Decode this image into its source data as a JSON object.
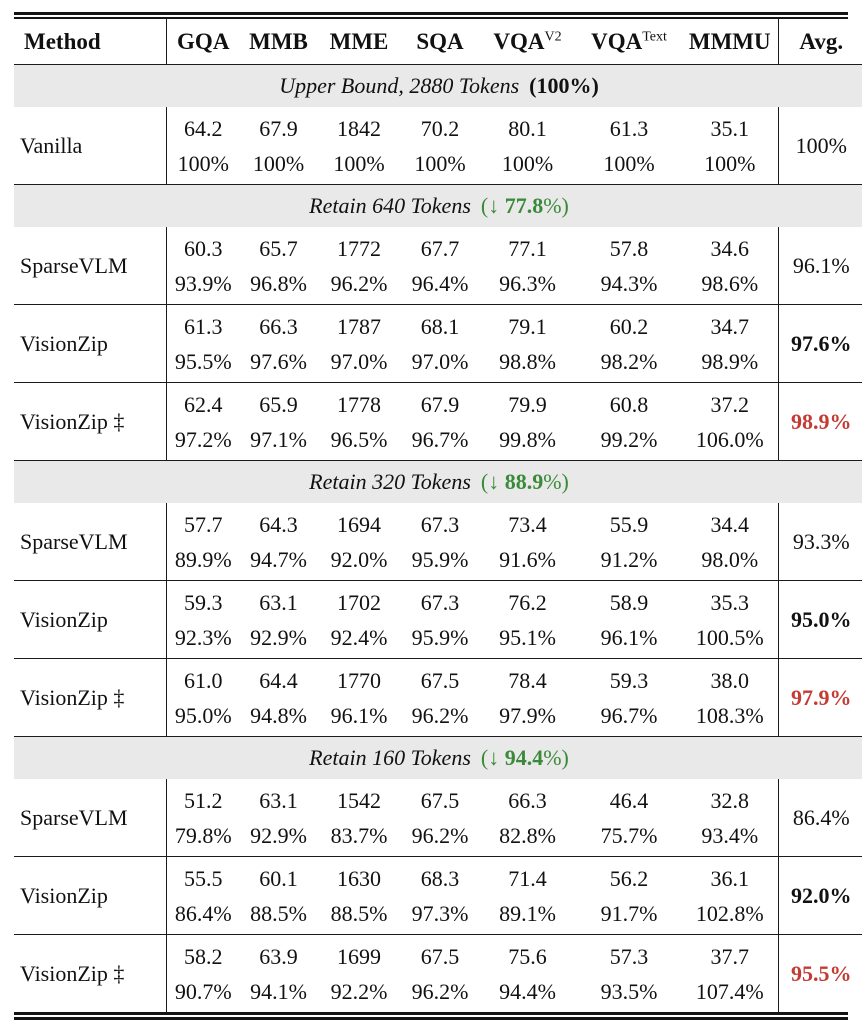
{
  "colors": {
    "green": "#3a8a3a",
    "red": "#c33b32",
    "band_background": "#e9e9e9",
    "rule": "#1b1b1b",
    "text": "#111111"
  },
  "table": {
    "header": {
      "method": "Method",
      "metrics": [
        {
          "label": "GQA",
          "sup": ""
        },
        {
          "label": "MMB",
          "sup": ""
        },
        {
          "label": "MME",
          "sup": ""
        },
        {
          "label": "SQA",
          "sup": ""
        },
        {
          "label": "VQA",
          "sup": "V2"
        },
        {
          "label": "VQA",
          "sup": "Text"
        },
        {
          "label": "MMMU",
          "sup": ""
        }
      ],
      "avg": "Avg."
    },
    "sections": [
      {
        "band": {
          "label": "Upper Bound, 2880 Tokens",
          "note_prefix": "(",
          "note_value": "100%",
          "note_suffix": ")",
          "note_color": "#111111",
          "wrap_bold": true
        },
        "rows": [
          {
            "method": "Vanilla",
            "scores": [
              "64.2",
              "67.9",
              "1842",
              "70.2",
              "80.1",
              "61.3",
              "35.1"
            ],
            "pcts": [
              "100%",
              "100%",
              "100%",
              "100%",
              "100%",
              "100%",
              "100%"
            ],
            "avg": "100%",
            "avg_class": "normal"
          }
        ]
      },
      {
        "band": {
          "label": "Retain 640 Tokens",
          "note_prefix": "(↓ ",
          "note_value": "77.8",
          "note_suffix": "%)",
          "note_color": "#3a8a3a",
          "wrap_bold": false
        },
        "rows": [
          {
            "method": "SparseVLM",
            "scores": [
              "60.3",
              "65.7",
              "1772",
              "67.7",
              "77.1",
              "57.8",
              "34.6"
            ],
            "pcts": [
              "93.9%",
              "96.8%",
              "96.2%",
              "96.4%",
              "96.3%",
              "94.3%",
              "98.6%"
            ],
            "avg": "96.1%",
            "avg_class": "normal"
          },
          {
            "method": "VisionZip",
            "scores": [
              "61.3",
              "66.3",
              "1787",
              "68.1",
              "79.1",
              "60.2",
              "34.7"
            ],
            "pcts": [
              "95.5%",
              "97.6%",
              "97.0%",
              "97.0%",
              "98.8%",
              "98.2%",
              "98.9%"
            ],
            "avg": "97.6%",
            "avg_class": "bold"
          },
          {
            "method": "VisionZip ‡",
            "scores": [
              "62.4",
              "65.9",
              "1778",
              "67.9",
              "79.9",
              "60.8",
              "37.2"
            ],
            "pcts": [
              "97.2%",
              "97.1%",
              "96.5%",
              "96.7%",
              "99.8%",
              "99.2%",
              "106.0%"
            ],
            "avg": "98.9%",
            "avg_class": "red"
          }
        ]
      },
      {
        "band": {
          "label": "Retain 320 Tokens",
          "note_prefix": "(↓ ",
          "note_value": "88.9",
          "note_suffix": "%)",
          "note_color": "#3a8a3a",
          "wrap_bold": false
        },
        "rows": [
          {
            "method": "SparseVLM",
            "scores": [
              "57.7",
              "64.3",
              "1694",
              "67.3",
              "73.4",
              "55.9",
              "34.4"
            ],
            "pcts": [
              "89.9%",
              "94.7%",
              "92.0%",
              "95.9%",
              "91.6%",
              "91.2%",
              "98.0%"
            ],
            "avg": "93.3%",
            "avg_class": "normal"
          },
          {
            "method": "VisionZip",
            "scores": [
              "59.3",
              "63.1",
              "1702",
              "67.3",
              "76.2",
              "58.9",
              "35.3"
            ],
            "pcts": [
              "92.3%",
              "92.9%",
              "92.4%",
              "95.9%",
              "95.1%",
              "96.1%",
              "100.5%"
            ],
            "avg": "95.0%",
            "avg_class": "bold"
          },
          {
            "method": "VisionZip ‡",
            "scores": [
              "61.0",
              "64.4",
              "1770",
              "67.5",
              "78.4",
              "59.3",
              "38.0"
            ],
            "pcts": [
              "95.0%",
              "94.8%",
              "96.1%",
              "96.2%",
              "97.9%",
              "96.7%",
              "108.3%"
            ],
            "avg": "97.9%",
            "avg_class": "red"
          }
        ]
      },
      {
        "band": {
          "label": "Retain 160 Tokens",
          "note_prefix": "(↓ ",
          "note_value": "94.4",
          "note_suffix": "%)",
          "note_color": "#3a8a3a",
          "wrap_bold": false
        },
        "rows": [
          {
            "method": "SparseVLM",
            "scores": [
              "51.2",
              "63.1",
              "1542",
              "67.5",
              "66.3",
              "46.4",
              "32.8"
            ],
            "pcts": [
              "79.8%",
              "92.9%",
              "83.7%",
              "96.2%",
              "82.8%",
              "75.7%",
              "93.4%"
            ],
            "avg": "86.4%",
            "avg_class": "normal"
          },
          {
            "method": "VisionZip",
            "scores": [
              "55.5",
              "60.1",
              "1630",
              "68.3",
              "71.4",
              "56.2",
              "36.1"
            ],
            "pcts": [
              "86.4%",
              "88.5%",
              "88.5%",
              "97.3%",
              "89.1%",
              "91.7%",
              "102.8%"
            ],
            "avg": "92.0%",
            "avg_class": "bold"
          },
          {
            "method": "VisionZip ‡",
            "scores": [
              "58.2",
              "63.9",
              "1699",
              "67.5",
              "75.6",
              "57.3",
              "37.7"
            ],
            "pcts": [
              "90.7%",
              "94.1%",
              "92.2%",
              "96.2%",
              "94.4%",
              "93.5%",
              "107.4%"
            ],
            "avg": "95.5%",
            "avg_class": "red"
          }
        ]
      }
    ]
  }
}
